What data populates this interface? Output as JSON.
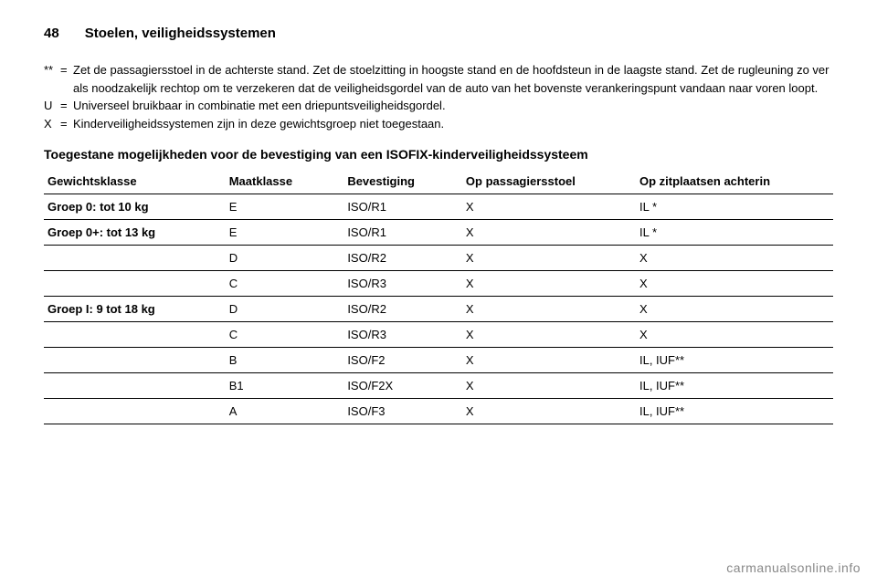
{
  "header": {
    "page_number": "48",
    "section": "Stoelen, veiligheidssystemen"
  },
  "footnotes": [
    {
      "key": "**",
      "text": "Zet de passagiersstoel in de achterste stand. Zet de stoelzitting in hoogste stand en de hoofdsteun in de laagste stand. Zet de rugleuning zo ver als noodzakelijk rechtop om te verzekeren dat de veiligheidsgordel van de auto van het bovenste verankeringspunt vandaan naar voren loopt."
    },
    {
      "key": "U",
      "text": "Universeel bruikbaar in combinatie met een driepuntsveiligheidsgordel."
    },
    {
      "key": "X",
      "text": "Kinderveiligheidssystemen zijn in deze gewichtsgroep niet toegestaan."
    }
  ],
  "subheading": "Toegestane mogelijkheden voor de bevestiging van een ISOFIX-kinderveiligheidssysteem",
  "table": {
    "headers": {
      "group": "Gewichtsklasse",
      "size": "Maatklasse",
      "fixture": "Bevestiging",
      "passenger": "Op passagiersstoel",
      "rear": "Op zitplaatsen achterin"
    },
    "rows": [
      {
        "group": "Groep 0: tot 10 kg",
        "size": "E",
        "fixture": "ISO/R1",
        "passenger": "X",
        "rear": "IL *"
      },
      {
        "group": "Groep 0+: tot 13 kg",
        "size": "E",
        "fixture": "ISO/R1",
        "passenger": "X",
        "rear": "IL *"
      },
      {
        "group": "",
        "size": "D",
        "fixture": "ISO/R2",
        "passenger": "X",
        "rear": "X"
      },
      {
        "group": "",
        "size": "C",
        "fixture": "ISO/R3",
        "passenger": "X",
        "rear": "X"
      },
      {
        "group": "Groep I: 9 tot 18 kg",
        "size": "D",
        "fixture": "ISO/R2",
        "passenger": "X",
        "rear": "X"
      },
      {
        "group": "",
        "size": "C",
        "fixture": "ISO/R3",
        "passenger": "X",
        "rear": "X"
      },
      {
        "group": "",
        "size": "B",
        "fixture": "ISO/F2",
        "passenger": "X",
        "rear": "IL, IUF**"
      },
      {
        "group": "",
        "size": "B1",
        "fixture": "ISO/F2X",
        "passenger": "X",
        "rear": "IL, IUF**"
      },
      {
        "group": "",
        "size": "A",
        "fixture": "ISO/F3",
        "passenger": "X",
        "rear": "IL, IUF**"
      }
    ]
  },
  "watermark": "carmanualsonline.info"
}
